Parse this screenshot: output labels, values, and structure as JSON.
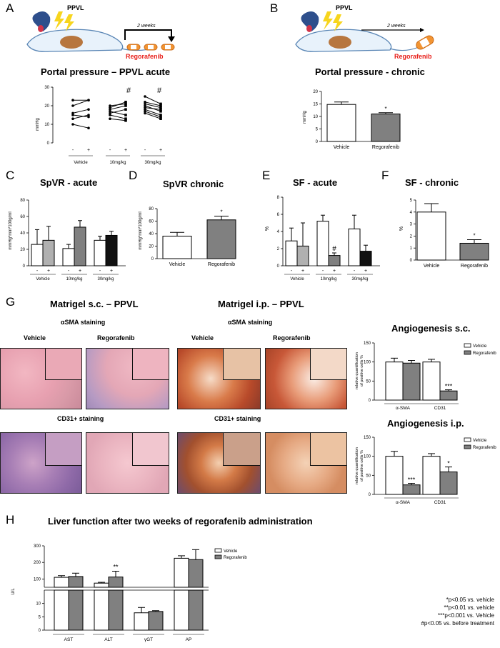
{
  "panels": {
    "A": {
      "letter": "A",
      "model": "PPVL",
      "duration": "2 weeks",
      "drug": "Regorafenib",
      "title": "Portal pressure – PPVL acute",
      "ylabel": "mmHg",
      "marks": [
        "-",
        "+",
        "-",
        "+",
        "-",
        "+"
      ],
      "groups": [
        "Vehicle",
        "10mg/kg",
        "30mg/kg"
      ],
      "hash": "#"
    },
    "B": {
      "letter": "B",
      "model": "PPVL",
      "duration": "2 weeks",
      "drug": "Regorafenib",
      "title": "Portal pressure - chronic",
      "ylabel": "mmHg",
      "star": "*"
    },
    "C": {
      "letter": "C",
      "title": "SpVR - acute",
      "ylabel": "mmHg*min*100g/ml"
    },
    "D": {
      "letter": "D",
      "title": "SpVR chronic",
      "ylabel": "mmHg*min*100g/ml",
      "star": "*"
    },
    "E": {
      "letter": "E",
      "title": "SF - acute",
      "ylabel": "%",
      "hash": "#"
    },
    "F": {
      "letter": "F",
      "title": "SF - chronic",
      "ylabel": "%",
      "star": "*"
    },
    "G": {
      "letter": "G",
      "sc_title": "Matrigel s.c. – PPVL",
      "ip_title": "Matrigel i.p. – PPVL",
      "asma_staining": "αSMA staining",
      "cd31_staining": "CD31+  staining",
      "vehicle": "Vehicle",
      "regorafenib": "Regorafenib",
      "angio_sc_title": "Angiogenesis s.c.",
      "angio_ip_title": "Angiogenesis i.p.",
      "angio_ylabel_1": "relative quantification",
      "angio_ylabel_2": "of positive cells %",
      "legend_vehicle": "Vehicle",
      "legend_regorafenib": "Regorafenib"
    },
    "H": {
      "letter": "H",
      "title": "Liver function after two weeks of  regorafenib administration",
      "ylabel": "U/L",
      "legend_vehicle": "Vehicle",
      "legend_regorafenib": "Regorafenib"
    }
  },
  "footnotes": [
    "*p<0.05 vs. vehicle",
    "**p<0.01 vs. vehicle",
    "***p<0.001 vs. Vehicle",
    "#p<0.05 vs. before treatment"
  ],
  "chart_data": [
    {
      "id": "A",
      "type": "line",
      "title": "Portal pressure – PPVL acute",
      "ylabel": "mmHg",
      "ylim": [
        0,
        30
      ],
      "yticks": [
        0,
        10,
        20,
        30
      ],
      "groups": [
        "Vehicle",
        "10mg/kg",
        "30mg/kg"
      ],
      "pairs": [
        [
          [
            23,
            23
          ],
          [
            20,
            23
          ],
          [
            16,
            18
          ],
          [
            15,
            14
          ],
          [
            13,
            15
          ],
          [
            10,
            8
          ]
        ],
        [
          [
            20,
            21
          ],
          [
            19,
            22
          ],
          [
            18,
            20
          ],
          [
            17,
            15
          ],
          [
            16,
            18
          ],
          [
            15,
            13
          ],
          [
            13,
            12
          ]
        ],
        [
          [
            25,
            21
          ],
          [
            22,
            20
          ],
          [
            21,
            19
          ],
          [
            20,
            17
          ],
          [
            19,
            18
          ],
          [
            18,
            15
          ],
          [
            17,
            14
          ],
          [
            16,
            13
          ]
        ]
      ],
      "annotations": [
        "",
        "#",
        "#"
      ]
    },
    {
      "id": "B",
      "type": "bar",
      "title": "Portal pressure - chronic",
      "categories": [
        "Vehicle",
        "Regorafenib"
      ],
      "values": [
        14.8,
        11.0
      ],
      "errors": [
        1.0,
        0.5
      ],
      "ylim": [
        0,
        20
      ],
      "yticks": [
        0,
        5,
        10,
        15,
        20
      ],
      "ylabel": "mmHg",
      "annotations": [
        "",
        "*"
      ]
    },
    {
      "id": "C",
      "type": "bar",
      "title": "SpVR - acute",
      "groups": [
        "Vehicle",
        "10mg/kg",
        "30mg/kg"
      ],
      "categories": [
        "-",
        "+",
        "-",
        "+",
        "-",
        "+"
      ],
      "values": [
        26,
        31,
        21,
        47,
        31,
        37
      ],
      "errors": [
        18,
        17,
        5,
        8,
        5,
        5
      ],
      "ylim": [
        0,
        80
      ],
      "yticks": [
        0,
        20,
        40,
        60,
        80
      ],
      "ylabel": "mmHg*min*100g/ml",
      "colors": [
        "#ffffff",
        "#b0b0b0",
        "#ffffff",
        "#808080",
        "#ffffff",
        "#111111"
      ]
    },
    {
      "id": "D",
      "type": "bar",
      "title": "SpVR chronic",
      "categories": [
        "Vehicle",
        "Regorafenib"
      ],
      "values": [
        36,
        62
      ],
      "errors": [
        6,
        6
      ],
      "ylim": [
        0,
        80
      ],
      "yticks": [
        0,
        20,
        40,
        60,
        80
      ],
      "ylabel": "mmHg*min*100g/ml",
      "annotations": [
        "",
        "*"
      ]
    },
    {
      "id": "E",
      "type": "bar",
      "title": "SF - acute",
      "groups": [
        "Vehicle",
        "10mg/kg",
        "30mg/kg"
      ],
      "categories": [
        "-",
        "+",
        "-",
        "+",
        "-",
        "+"
      ],
      "values": [
        2.9,
        2.3,
        5.2,
        1.2,
        4.3,
        1.7
      ],
      "errors": [
        1.5,
        2.7,
        0.7,
        0.3,
        1.6,
        0.7
      ],
      "ylim": [
        0,
        8
      ],
      "yticks": [
        0,
        2,
        4,
        6,
        8
      ],
      "ylabel": "%",
      "colors": [
        "#ffffff",
        "#b0b0b0",
        "#ffffff",
        "#808080",
        "#ffffff",
        "#111111"
      ],
      "annotations": [
        "",
        "",
        "",
        "#",
        "",
        ""
      ]
    },
    {
      "id": "F",
      "type": "bar",
      "title": "SF - chronic",
      "categories": [
        "Vehicle",
        "Regorafenib"
      ],
      "values": [
        4.0,
        1.4
      ],
      "errors": [
        0.7,
        0.3
      ],
      "ylim": [
        0,
        5
      ],
      "yticks": [
        0,
        1,
        2,
        3,
        4,
        5
      ],
      "ylabel": "%",
      "annotations": [
        "",
        "*"
      ]
    },
    {
      "id": "G-sc",
      "type": "bar",
      "title": "Angiogenesis s.c.",
      "groups": [
        "α-SMA",
        "CD31"
      ],
      "series": [
        {
          "name": "Vehicle",
          "values": [
            100,
            100
          ],
          "errors": [
            10,
            7
          ]
        },
        {
          "name": "Regorafenib",
          "values": [
            97,
            24
          ],
          "errors": [
            7,
            3
          ]
        }
      ],
      "ylim": [
        0,
        150
      ],
      "yticks": [
        0,
        50,
        100,
        150
      ],
      "annotations": [
        "",
        "***"
      ]
    },
    {
      "id": "G-ip",
      "type": "bar",
      "title": "Angiogenesis i.p.",
      "groups": [
        "α-SMA",
        "CD31"
      ],
      "series": [
        {
          "name": "Vehicle",
          "values": [
            100,
            100
          ],
          "errors": [
            13,
            7
          ]
        },
        {
          "name": "Regorafenib",
          "values": [
            25,
            59
          ],
          "errors": [
            4,
            13
          ]
        }
      ],
      "ylim": [
        0,
        150
      ],
      "yticks": [
        0,
        50,
        100,
        150
      ],
      "annotations": [
        "***",
        "*"
      ]
    },
    {
      "id": "H",
      "type": "bar",
      "title": "Liver function after two weeks of  regorafenib administration",
      "groups": [
        "AST",
        "ALT",
        "γGT",
        "AP"
      ],
      "series": [
        {
          "name": "Vehicle",
          "values": [
            110,
            75,
            6.5,
            225
          ],
          "errors": [
            10,
            5,
            2,
            15
          ]
        },
        {
          "name": "Regorafenib",
          "values": [
            115,
            112,
            7,
            217
          ],
          "errors": [
            20,
            35,
            0.3,
            60
          ]
        }
      ],
      "ylabel": "U/L",
      "upper_ylim": [
        50,
        300
      ],
      "upper_yticks": [
        100,
        200,
        300
      ],
      "lower_ylim": [
        0,
        15
      ],
      "lower_yticks": [
        0,
        5,
        10
      ],
      "annotations": [
        "",
        "**",
        "",
        ""
      ]
    }
  ]
}
